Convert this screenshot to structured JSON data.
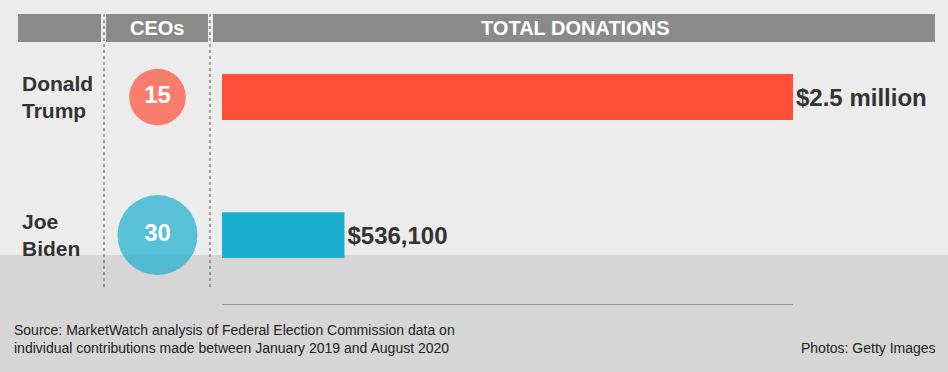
{
  "chart_data": {
    "type": "bar",
    "orientation": "horizontal",
    "categories": [
      "Donald Trump",
      "Joe Biden"
    ],
    "values": [
      2500000,
      536100
    ],
    "value_labels": [
      "$2.5 million",
      "$536,100"
    ],
    "data_labels": true,
    "colors": [
      "#ff4f38",
      "#1aafd0"
    ],
    "xlim": [
      0,
      2500000
    ],
    "xticks": [],
    "grid": false,
    "tick_labels": "y",
    "values_header": "TOTAL DONATIONS",
    "ceo_header": "CEOs",
    "ceo_counts": [
      15,
      30
    ],
    "source": [
      "Source: MarketWatch analysis of Federal Election Commission data on",
      "individual contributions made between January 2019 and August 2020"
    ],
    "credit": "Photos: Getty Images"
  }
}
